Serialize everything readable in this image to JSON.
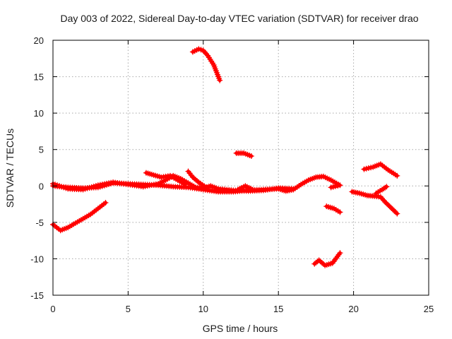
{
  "chart_data": {
    "type": "scatter",
    "title": "Day 003 of 2022, Sidereal Day-to-day VTEC variation (SDTVAR) for receiver drao",
    "xlabel": "GPS time / hours",
    "ylabel": "SDTVAR / TECUs",
    "xlim": [
      0,
      25
    ],
    "ylim": [
      -15,
      20
    ],
    "xticks": [
      0,
      5,
      10,
      15,
      20,
      25
    ],
    "yticks": [
      -15,
      -10,
      -5,
      0,
      5,
      10,
      15,
      20
    ],
    "grid": true,
    "marker": "plus",
    "color": "#ff0000",
    "series": [
      {
        "name": "track-main-a",
        "points": [
          [
            0,
            0
          ],
          [
            1,
            -0.2
          ],
          [
            2,
            -0.3
          ],
          [
            3,
            -0.2
          ],
          [
            4,
            0.4
          ],
          [
            5,
            0.3
          ],
          [
            6,
            0.2
          ],
          [
            7,
            0.1
          ],
          [
            8,
            -0.1
          ],
          [
            9,
            -0.2
          ],
          [
            10,
            -0.5
          ],
          [
            11,
            -0.8
          ],
          [
            12,
            -0.8
          ],
          [
            13,
            -0.6
          ],
          [
            14,
            -0.5
          ],
          [
            15,
            -0.4
          ],
          [
            15.5,
            -0.7
          ],
          [
            16,
            -0.5
          ],
          [
            16.5,
            0.2
          ],
          [
            17,
            0.8
          ],
          [
            17.5,
            1.2
          ],
          [
            18,
            1.3
          ],
          [
            18.5,
            0.8
          ],
          [
            19,
            0.2
          ]
        ]
      },
      {
        "name": "track-main-b",
        "points": [
          [
            0,
            0.3
          ],
          [
            1,
            -0.4
          ],
          [
            2,
            -0.5
          ],
          [
            3,
            0.1
          ],
          [
            4,
            0.5
          ],
          [
            5,
            0.2
          ],
          [
            6,
            -0.1
          ],
          [
            7,
            0.3
          ],
          [
            7.5,
            0.8
          ],
          [
            8,
            1.4
          ],
          [
            8.5,
            1
          ],
          [
            9,
            0.4
          ],
          [
            9.5,
            -0.2
          ],
          [
            10,
            -0.3
          ],
          [
            10.5,
            0
          ],
          [
            11,
            -0.4
          ],
          [
            12,
            -0.6
          ],
          [
            13,
            -0.7
          ],
          [
            14,
            -0.6
          ],
          [
            15,
            -0.3
          ],
          [
            16,
            -0.4
          ]
        ]
      },
      {
        "name": "track-bump-a",
        "points": [
          [
            6.2,
            1.8
          ],
          [
            6.7,
            1.5
          ],
          [
            7.2,
            1.2
          ],
          [
            7.8,
            1.4
          ],
          [
            8.3,
            0.8
          ],
          [
            8.8,
            0.2
          ]
        ]
      },
      {
        "name": "track-bump-b",
        "points": [
          [
            9,
            2
          ],
          [
            9.3,
            1.2
          ],
          [
            9.7,
            0.5
          ],
          [
            10.2,
            -0.2
          ]
        ]
      },
      {
        "name": "track-bump-c",
        "points": [
          [
            12.3,
            -0.5
          ],
          [
            12.8,
            0
          ],
          [
            13.3,
            -0.5
          ]
        ]
      },
      {
        "name": "track-rising",
        "points": [
          [
            0,
            -5.3
          ],
          [
            0.5,
            -6.1
          ],
          [
            1,
            -5.7
          ],
          [
            1.5,
            -5.1
          ],
          [
            2,
            -4.5
          ],
          [
            2.5,
            -3.9
          ],
          [
            3,
            -3.1
          ],
          [
            3.5,
            -2.3
          ]
        ]
      },
      {
        "name": "track-peak",
        "points": [
          [
            9.3,
            18.4
          ],
          [
            9.7,
            18.8
          ],
          [
            10,
            18.6
          ],
          [
            10.3,
            17.9
          ],
          [
            10.7,
            16.6
          ],
          [
            11.1,
            14.5
          ]
        ]
      },
      {
        "name": "track-mid",
        "points": [
          [
            12.2,
            4.5
          ],
          [
            12.7,
            4.5
          ],
          [
            13.2,
            4.1
          ]
        ]
      },
      {
        "name": "track-right-upper",
        "points": [
          [
            20.7,
            2.3
          ],
          [
            21.3,
            2.6
          ],
          [
            21.8,
            3
          ],
          [
            22.3,
            2.2
          ],
          [
            22.9,
            1.4
          ]
        ]
      },
      {
        "name": "track-right-lower",
        "points": [
          [
            19.9,
            -0.8
          ],
          [
            20.4,
            -1
          ],
          [
            20.9,
            -1.3
          ],
          [
            21.4,
            -1.4
          ],
          [
            21.8,
            -1.5
          ],
          [
            22.1,
            -2.2
          ],
          [
            22.5,
            -3
          ],
          [
            22.9,
            -3.8
          ]
        ]
      },
      {
        "name": "track-right-short",
        "points": [
          [
            21.5,
            -1
          ],
          [
            21.9,
            -0.5
          ],
          [
            22.2,
            -0.1
          ]
        ]
      },
      {
        "name": "track-small-neg",
        "points": [
          [
            18.2,
            -2.8
          ],
          [
            18.7,
            -3.1
          ],
          [
            19.1,
            -3.6
          ]
        ]
      },
      {
        "name": "track-low",
        "points": [
          [
            17.4,
            -10.7
          ],
          [
            17.7,
            -10.2
          ],
          [
            18.1,
            -10.9
          ],
          [
            18.6,
            -10.6
          ],
          [
            19.1,
            -9.2
          ]
        ]
      },
      {
        "name": "track-tail",
        "points": [
          [
            18.5,
            -0.2
          ],
          [
            19.1,
            0.1
          ]
        ]
      }
    ]
  }
}
